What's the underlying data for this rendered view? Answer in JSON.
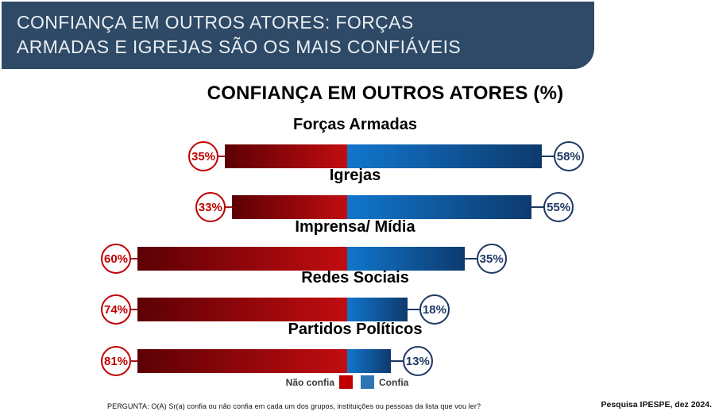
{
  "banner": {
    "line1": "CONFIANÇA EM OUTROS ATORES: FORÇAS",
    "line2": "ARMADAS E IGREJAS SÃO OS MAIS CONFIÁVEIS",
    "bg_color": "#2e4a66",
    "text_color": "#e9eef3"
  },
  "chart": {
    "title": "CONFIANÇA EM OUTROS ATORES (%)"
  },
  "chart_data": {
    "type": "bar",
    "orientation": "horizontal-diverging-stacked",
    "title": "CONFIANÇA EM OUTROS ATORES (%)",
    "categories": [
      "Forças Armadas",
      "Igrejas",
      "Imprensa/ Mídia",
      "Redes Sociais",
      "Partidos Políticos"
    ],
    "series": [
      {
        "name": "Não confia",
        "color": "#c00000",
        "gradient": [
          "#5c0004",
          "#c10d10"
        ],
        "values": [
          35,
          33,
          60,
          74,
          81
        ]
      },
      {
        "name": "Confia",
        "color": "#2e75b6",
        "gradient": [
          "#1176cc",
          "#0d3a6e"
        ],
        "values": [
          58,
          55,
          35,
          18,
          13
        ]
      }
    ],
    "value_suffix": "%",
    "legend_position": "bottom-center",
    "axis_ticks": "none",
    "grid": false
  },
  "legend": {
    "nao_confia_label": "Não confia",
    "confia_label": "Confia"
  },
  "footer": {
    "question": "PERGUNTA: O(A) Sr(a) confia ou não confia em cada um dos grupos, instituições ou pessoas da lista que vou ler?",
    "source": "Pesquisa IPESPE, dez 2024."
  },
  "colors": {
    "badge_red_ring": "#c00000",
    "badge_blue_ring": "#1f3864",
    "banner_bg": "#2e4a66"
  }
}
